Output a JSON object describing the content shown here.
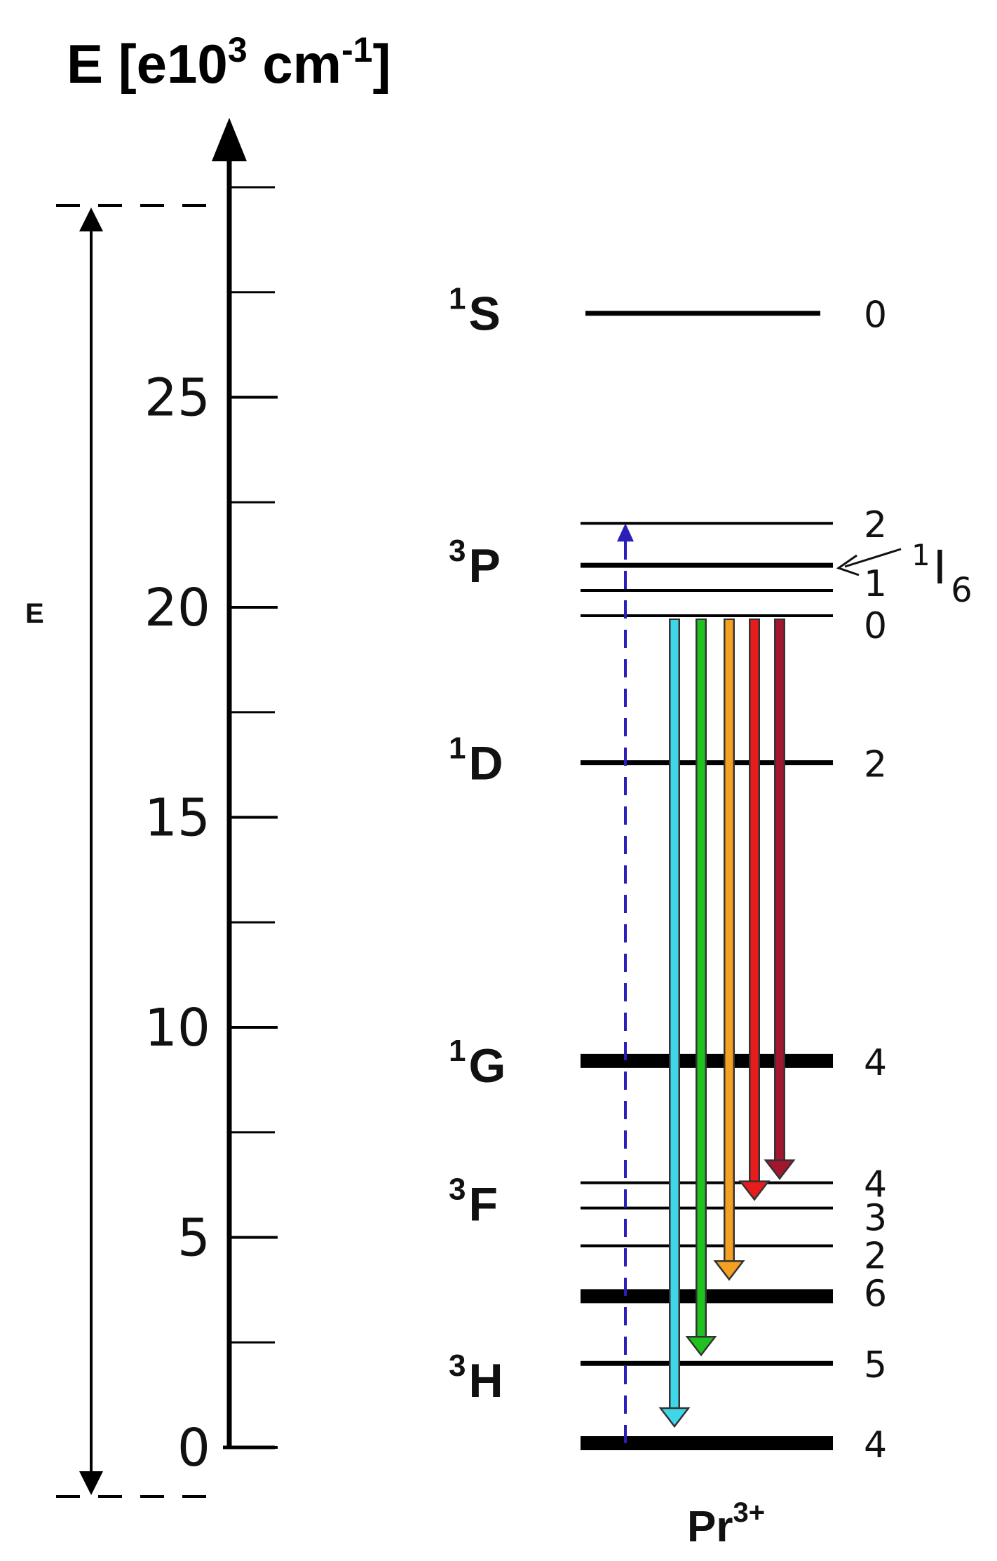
{
  "diagram": {
    "axis_title": {
      "base": "E [e10",
      "sup": "3",
      "unit": " cm",
      "unit_sup": "-1",
      "close": "]"
    },
    "ticks": [
      {
        "value": 0,
        "label": "0"
      },
      {
        "value": 5,
        "label": "5"
      },
      {
        "value": 10,
        "label": "10"
      },
      {
        "value": 15,
        "label": "15"
      },
      {
        "value": 20,
        "label": "20"
      },
      {
        "value": 25,
        "label": "25"
      }
    ],
    "minor_ticks": [
      2.5,
      7.5,
      12.5,
      17.5,
      22.5,
      27.5,
      30
    ],
    "range_label": "E",
    "ion": {
      "base": "Pr",
      "sup": "3+"
    },
    "terms": [
      {
        "id": "1S",
        "sup": "1",
        "letter": "S",
        "y": 27
      },
      {
        "id": "3P",
        "sup": "3",
        "letter": "P",
        "y": 21
      },
      {
        "id": "1D",
        "sup": "1",
        "letter": "D",
        "y": 16.3
      },
      {
        "id": "1G",
        "sup": "1",
        "letter": "G",
        "y": 9.1
      },
      {
        "id": "3F",
        "sup": "3",
        "letter": "F",
        "y": 5.8
      },
      {
        "id": "3H",
        "sup": "3",
        "letter": "H",
        "y": 1.6
      }
    ],
    "levels": [
      {
        "term": "1S",
        "j": "0",
        "energy": 27.0,
        "weight": "medium",
        "j_y": 27.0
      },
      {
        "term": "3P",
        "j": "2",
        "energy": 22.0,
        "weight": "thin",
        "j_y": 22.0
      },
      {
        "term": "1I",
        "j": "",
        "energy": 21.0,
        "weight": "medium",
        "j_y": 21.0
      },
      {
        "term": "3P",
        "j": "1",
        "energy": 20.4,
        "weight": "thin",
        "j_y": 20.6
      },
      {
        "term": "3P",
        "j": "0",
        "energy": 19.8,
        "weight": "thin",
        "j_y": 19.6
      },
      {
        "term": "1D",
        "j": "2",
        "energy": 16.3,
        "weight": "medium",
        "j_y": 16.3
      },
      {
        "term": "1G",
        "j": "4",
        "energy": 9.2,
        "weight": "thick",
        "j_y": 9.2
      },
      {
        "term": "3F",
        "j": "4",
        "energy": 6.3,
        "weight": "thin",
        "j_y": 6.3
      },
      {
        "term": "3F",
        "j": "3",
        "energy": 5.7,
        "weight": "thin",
        "j_y": 5.5
      },
      {
        "term": "3F",
        "j": "2",
        "energy": 4.8,
        "weight": "thin",
        "j_y": 4.6
      },
      {
        "term": "3H",
        "j": "6",
        "energy": 3.6,
        "weight": "thick",
        "j_y": 3.7
      },
      {
        "term": "3H",
        "j": "5",
        "energy": 2.0,
        "weight": "medium",
        "j_y": 2.0
      },
      {
        "term": "3H",
        "j": "4",
        "energy": 0.1,
        "weight": "thick",
        "j_y": 0.1
      }
    ],
    "i6_label": {
      "sup": "1",
      "letter": "I",
      "sub": "6",
      "points_to": 21.0
    },
    "excitation": {
      "from": 0.1,
      "to": 22.0,
      "color": "#2a1fb8",
      "style": "dashed"
    },
    "emissions": [
      {
        "from": 19.8,
        "to": 0.5,
        "color": "#3fd6e8"
      },
      {
        "from": 19.8,
        "to": 2.2,
        "color": "#1fc21f"
      },
      {
        "from": 19.8,
        "to": 4.0,
        "color": "#f5a023"
      },
      {
        "from": 19.8,
        "to": 5.9,
        "color": "#e81c1c"
      },
      {
        "from": 19.8,
        "to": 6.4,
        "color": "#a3162e"
      }
    ]
  }
}
